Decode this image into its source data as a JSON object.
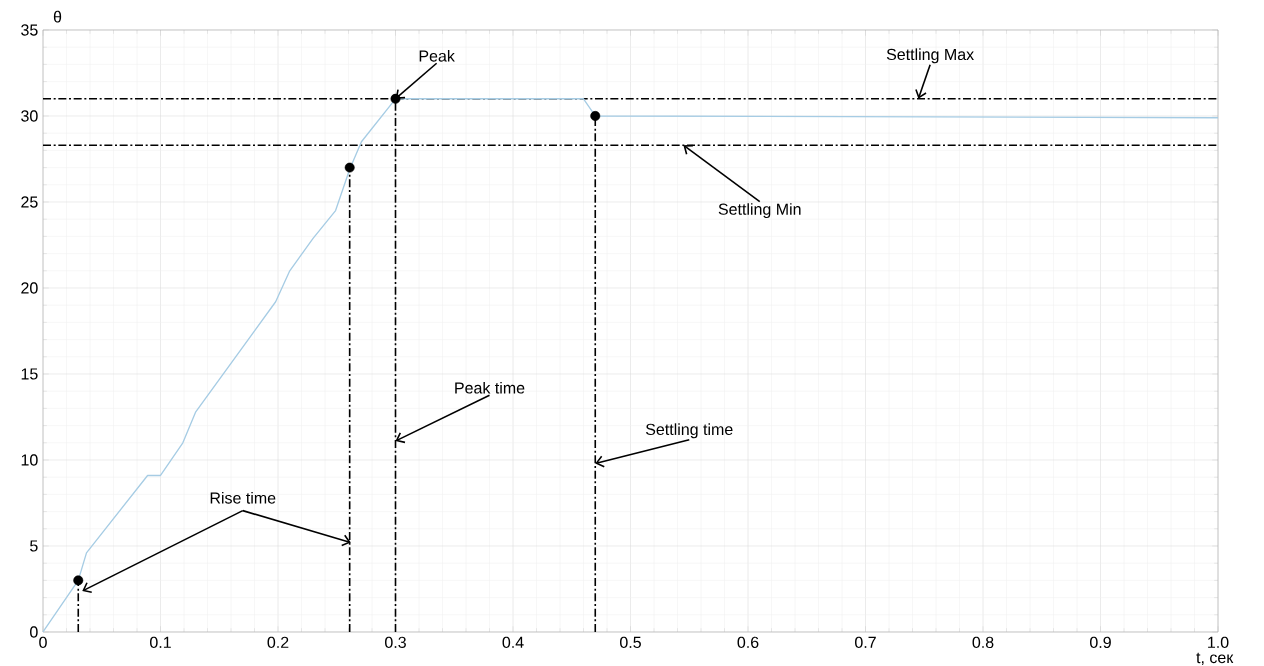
{
  "chart_data": {
    "type": "line",
    "xlabel": "t, сек",
    "ylabel": "θ",
    "xlim": [
      0,
      1.0
    ],
    "ylim": [
      0,
      35
    ],
    "xticks": [
      0,
      0.1,
      0.2,
      0.3,
      0.4,
      0.5,
      0.6,
      0.7,
      0.8,
      0.9,
      {
        "value": 1.0,
        "label": "1.0"
      }
    ],
    "yticks": [
      0,
      5,
      10,
      15,
      20,
      25,
      30,
      35
    ],
    "grid": true,
    "series": [
      {
        "color": "#a6cce4",
        "line_style": "solid",
        "x": [
          0,
          0.03,
          0.037,
          0.089,
          0.1,
          0.119,
          0.13,
          0.198,
          0.21,
          0.23,
          0.249,
          0.261,
          0.271,
          0.3,
          0.46,
          0.47,
          1.0
        ],
        "values": [
          0,
          3.0,
          4.6,
          9.1,
          9.1,
          11.0,
          12.8,
          19.2,
          21.0,
          22.9,
          24.5,
          26.9,
          28.5,
          31.0,
          31.0,
          30.0,
          29.9
        ]
      },
      {
        "type": "scatter",
        "color": "#000000",
        "marker": "circle",
        "x": [
          0.03,
          0.261,
          0.3,
          0.47
        ],
        "values": [
          3.0,
          27.0,
          31.0,
          30.0
        ]
      },
      {
        "type": "line",
        "color": "#000000",
        "line_style": "dashdot",
        "x": [
          0.03,
          0.03
        ],
        "values": [
          0,
          3.0
        ]
      },
      {
        "type": "line",
        "color": "#000000",
        "line_style": "dashdot",
        "x": [
          0.261,
          0.261
        ],
        "values": [
          0,
          27.0
        ]
      },
      {
        "type": "line",
        "color": "#000000",
        "line_style": "dashdot",
        "x": [
          0.3,
          0.3
        ],
        "values": [
          0,
          31.0
        ]
      },
      {
        "type": "line",
        "color": "#000000",
        "line_style": "dashdot",
        "x": [
          0.47,
          0.47
        ],
        "values": [
          0,
          30.0
        ]
      }
    ],
    "ref_lines": [
      {
        "axis": "y",
        "value": 31.0,
        "color": "#000000",
        "line_style": "dashdot"
      },
      {
        "axis": "y",
        "value": 28.3,
        "color": "#000000",
        "line_style": "dashdot"
      }
    ],
    "annotations": [
      {
        "text": "Peak",
        "x": 0.3,
        "y": 31.0
      },
      {
        "text": "Settling Max",
        "x": 0.745,
        "y": 31.0
      },
      {
        "text": "Settling Min",
        "x": 0.545,
        "y": 28.3
      },
      {
        "text": "Peak time",
        "x": 0.3,
        "y": 11.1
      },
      {
        "text": "Settling time",
        "x": 0.47,
        "y": 9.8
      },
      {
        "text": "Rise time",
        "x": 0.262,
        "y": 5.2
      }
    ]
  }
}
